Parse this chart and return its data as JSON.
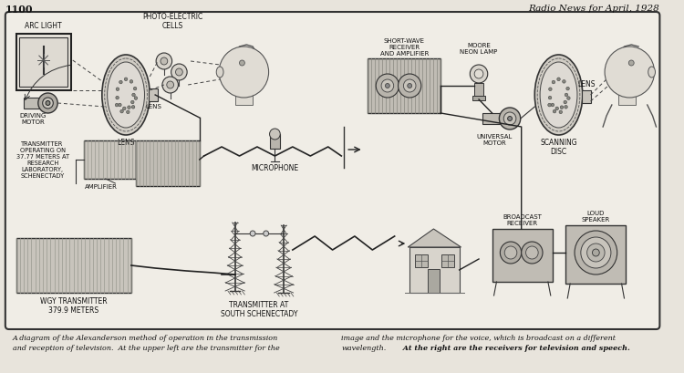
{
  "page_number": "1100",
  "header_right": "Radio News for April, 1928",
  "bg_color": "#e8e4dc",
  "border_color": "#444444",
  "inner_bg": "#f0ede6",
  "caption_line1_left": "A diagram of the Alexanderson method of operation in the transmission",
  "caption_line2_left": "and reception of television.  At the upper left are the transmitter for the",
  "caption_line1_right": "image and the microphone for the voice, which is broadcast on a different",
  "caption_line2_right": "wavelength.  At the right are the receivers for television and speech.",
  "labels": {
    "arc_light": "ARC LIGHT",
    "photo_electric": "PHOTO-ELECTRIC\nCELLS",
    "lens_left": "LENS",
    "driving_motor": "DRIVING\nMOTOR",
    "transmitter_box": "TRANSMITTER\nOPERATING ON\n37.77 METERS AT\nRESEARCH\nLABORATORY,\nSCHENECTADY",
    "amplifier": "AMPLIFIER",
    "microphone": "MICROPHONE",
    "wgy_transmitter": "WGY TRANSMITTER\n379.9 METERS",
    "transmitter_south": "TRANSMITTER AT\nSOUTH SCHENECTADY",
    "short_wave": "SHORT-WAVE\nRECEIVER\nAND AMPLIFIER",
    "moore_neon": "MOORE\nNEON LAMP",
    "lens_right": "LENS",
    "universal_motor": "UNIVERSAL\nMOTOR",
    "scanning_disc": "SCANNING\nDISC",
    "broadcast_receiver": "BROADCAST\nRECEIVER",
    "loud_speaker": "LOUD\nSPEAKER"
  },
  "text_color": "#111111",
  "line_color": "#222222",
  "box_fill_light": "#d8d4cc",
  "box_fill_dark": "#b8b4ac",
  "disc_fill": "#c8c4bc"
}
